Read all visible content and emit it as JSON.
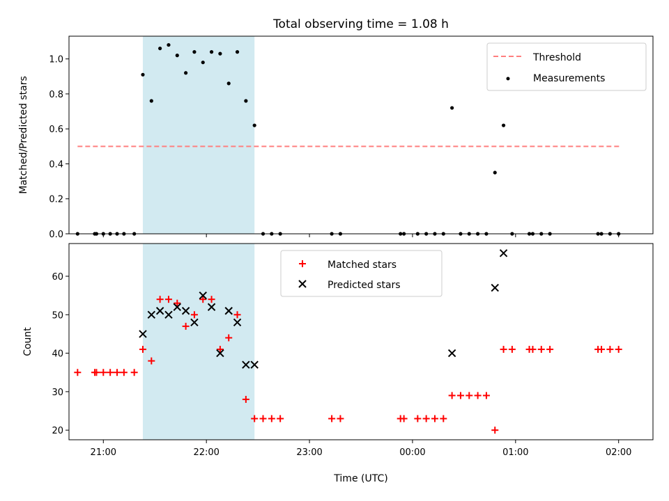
{
  "chart_data": [
    {
      "type": "scatter",
      "title": "Total observing time = 1.08 h",
      "xlabel": "",
      "ylabel": "Matched/Predicted stars",
      "xlim": [
        "20:40",
        "02:20"
      ],
      "ylim": [
        0,
        1.13
      ],
      "yticks": [
        0.0,
        0.2,
        0.4,
        0.6,
        0.8,
        1.0
      ],
      "ytick_labels": [
        "0.0",
        "0.2",
        "0.4",
        "0.6",
        "0.8",
        "1.0"
      ],
      "xticks": [
        "21:00",
        "22:00",
        "23:00",
        "00:00",
        "01:00",
        "02:00"
      ],
      "shaded_interval": [
        "21:23",
        "22:28"
      ],
      "shade_color": "#add8e6",
      "legend_position": "upper right",
      "threshold": {
        "name": "Threshold",
        "value": 0.5,
        "x_range": [
          "20:45",
          "02:01"
        ],
        "color": "#ff7f7f",
        "style": "dashed"
      },
      "series": [
        {
          "name": "Measurements",
          "color": "#000000",
          "marker": "dot",
          "points": [
            [
              "20:45",
              0
            ],
            [
              "20:55",
              0
            ],
            [
              "20:56",
              0
            ],
            [
              "21:00",
              0
            ],
            [
              "21:04",
              0
            ],
            [
              "21:08",
              0
            ],
            [
              "21:12",
              0
            ],
            [
              "21:18",
              0
            ],
            [
              "21:23",
              0.91
            ],
            [
              "21:28",
              0.76
            ],
            [
              "21:33",
              1.06
            ],
            [
              "21:38",
              1.08
            ],
            [
              "21:43",
              1.02
            ],
            [
              "21:48",
              0.92
            ],
            [
              "21:53",
              1.04
            ],
            [
              "21:58",
              0.98
            ],
            [
              "22:03",
              1.04
            ],
            [
              "22:08",
              1.03
            ],
            [
              "22:13",
              0.86
            ],
            [
              "22:18",
              1.04
            ],
            [
              "22:23",
              0.76
            ],
            [
              "22:28",
              0.62
            ],
            [
              "22:33",
              0
            ],
            [
              "22:38",
              0
            ],
            [
              "22:43",
              0
            ],
            [
              "23:13",
              0
            ],
            [
              "23:18",
              0
            ],
            [
              "23:53",
              0
            ],
            [
              "23:55",
              0
            ],
            [
              "24:03",
              0
            ],
            [
              "24:08",
              0
            ],
            [
              "24:13",
              0
            ],
            [
              "24:18",
              0
            ],
            [
              "24:23",
              0.72
            ],
            [
              "24:28",
              0
            ],
            [
              "24:33",
              0
            ],
            [
              "24:38",
              0
            ],
            [
              "24:43",
              0
            ],
            [
              "24:48",
              0.35
            ],
            [
              "24:53",
              0.62
            ],
            [
              "24:58",
              0
            ],
            [
              "25:08",
              0
            ],
            [
              "25:10",
              0
            ],
            [
              "25:15",
              0
            ],
            [
              "25:20",
              0
            ],
            [
              "25:48",
              0
            ],
            [
              "25:50",
              0
            ],
            [
              "25:55",
              0
            ],
            [
              "26:00",
              0
            ]
          ]
        }
      ]
    },
    {
      "type": "scatter",
      "title": "",
      "xlabel": "Time (UTC)",
      "ylabel": "Count",
      "xlim": [
        "20:40",
        "02:20"
      ],
      "ylim": [
        17.5,
        68.5
      ],
      "yticks": [
        20,
        30,
        40,
        50,
        60
      ],
      "ytick_labels": [
        "20",
        "30",
        "40",
        "50",
        "60"
      ],
      "xticks": [
        "21:00",
        "22:00",
        "23:00",
        "00:00",
        "01:00",
        "02:00"
      ],
      "xtick_labels": [
        "21:00",
        "22:00",
        "23:00",
        "00:00",
        "01:00",
        "02:00"
      ],
      "shaded_interval": [
        "21:23",
        "22:28"
      ],
      "shade_color": "#add8e6",
      "legend_position": "upper center",
      "series": [
        {
          "name": "Matched stars",
          "color": "#ff0000",
          "marker": "plus",
          "points": [
            [
              "20:45",
              35
            ],
            [
              "20:55",
              35
            ],
            [
              "20:56",
              35
            ],
            [
              "21:00",
              35
            ],
            [
              "21:04",
              35
            ],
            [
              "21:08",
              35
            ],
            [
              "21:12",
              35
            ],
            [
              "21:18",
              35
            ],
            [
              "21:23",
              41
            ],
            [
              "21:28",
              38
            ],
            [
              "21:33",
              54
            ],
            [
              "21:38",
              54
            ],
            [
              "21:43",
              53
            ],
            [
              "21:48",
              47
            ],
            [
              "21:53",
              50
            ],
            [
              "21:58",
              54
            ],
            [
              "22:03",
              54
            ],
            [
              "22:08",
              41
            ],
            [
              "22:13",
              44
            ],
            [
              "22:18",
              50
            ],
            [
              "22:23",
              28
            ],
            [
              "22:28",
              23
            ],
            [
              "22:33",
              23
            ],
            [
              "22:38",
              23
            ],
            [
              "22:43",
              23
            ],
            [
              "23:13",
              23
            ],
            [
              "23:18",
              23
            ],
            [
              "23:53",
              23
            ],
            [
              "23:55",
              23
            ],
            [
              "24:03",
              23
            ],
            [
              "24:08",
              23
            ],
            [
              "24:13",
              23
            ],
            [
              "24:18",
              23
            ],
            [
              "24:23",
              29
            ],
            [
              "24:28",
              29
            ],
            [
              "24:33",
              29
            ],
            [
              "24:38",
              29
            ],
            [
              "24:43",
              29
            ],
            [
              "24:48",
              20
            ],
            [
              "24:53",
              41
            ],
            [
              "24:58",
              41
            ],
            [
              "25:08",
              41
            ],
            [
              "25:10",
              41
            ],
            [
              "25:15",
              41
            ],
            [
              "25:20",
              41
            ],
            [
              "25:48",
              41
            ],
            [
              "25:50",
              41
            ],
            [
              "25:55",
              41
            ],
            [
              "26:00",
              41
            ]
          ]
        },
        {
          "name": "Predicted stars",
          "color": "#000000",
          "marker": "x",
          "points": [
            [
              "21:23",
              45
            ],
            [
              "21:28",
              50
            ],
            [
              "21:33",
              51
            ],
            [
              "21:38",
              50
            ],
            [
              "21:43",
              52
            ],
            [
              "21:48",
              51
            ],
            [
              "21:53",
              48
            ],
            [
              "21:58",
              55
            ],
            [
              "22:03",
              52
            ],
            [
              "22:08",
              40
            ],
            [
              "22:13",
              51
            ],
            [
              "22:18",
              48
            ],
            [
              "22:23",
              37
            ],
            [
              "22:28",
              37
            ],
            [
              "24:23",
              40
            ],
            [
              "24:48",
              57
            ],
            [
              "24:53",
              66
            ]
          ]
        }
      ]
    }
  ]
}
